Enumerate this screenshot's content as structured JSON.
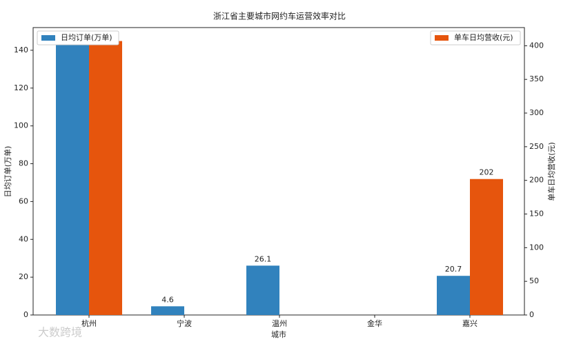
{
  "chart_data": {
    "type": "bar",
    "title": "浙江省主要城市网约车运营效率对比",
    "x_label": "城市",
    "y_label": "日均订单(万单)",
    "y2_label": "单车日均营收(元)",
    "watermark": "大数跨境",
    "categories": [
      "杭州",
      "宁波",
      "温州",
      "金华",
      "嘉兴"
    ],
    "series": [
      {
        "name": "日均订单(万单)",
        "color": "#3182bd",
        "values": [
          145,
          4.6,
          26.1,
          null,
          20.7
        ],
        "legend": "upper left"
      },
      {
        "name": "单车日均营收(元)",
        "color": "#e6550d",
        "axis": "y2",
        "values": [
          407,
          null,
          null,
          null,
          202
        ],
        "legend": "upper right"
      }
    ],
    "ylim": [
      0,
      152
    ],
    "yticks": [
      0,
      20,
      40,
      60,
      80,
      100,
      120,
      140
    ],
    "y2lim": [
      0,
      427
    ],
    "y2ticks": [
      0,
      50,
      100,
      150,
      200,
      250,
      300,
      350,
      400
    ]
  }
}
